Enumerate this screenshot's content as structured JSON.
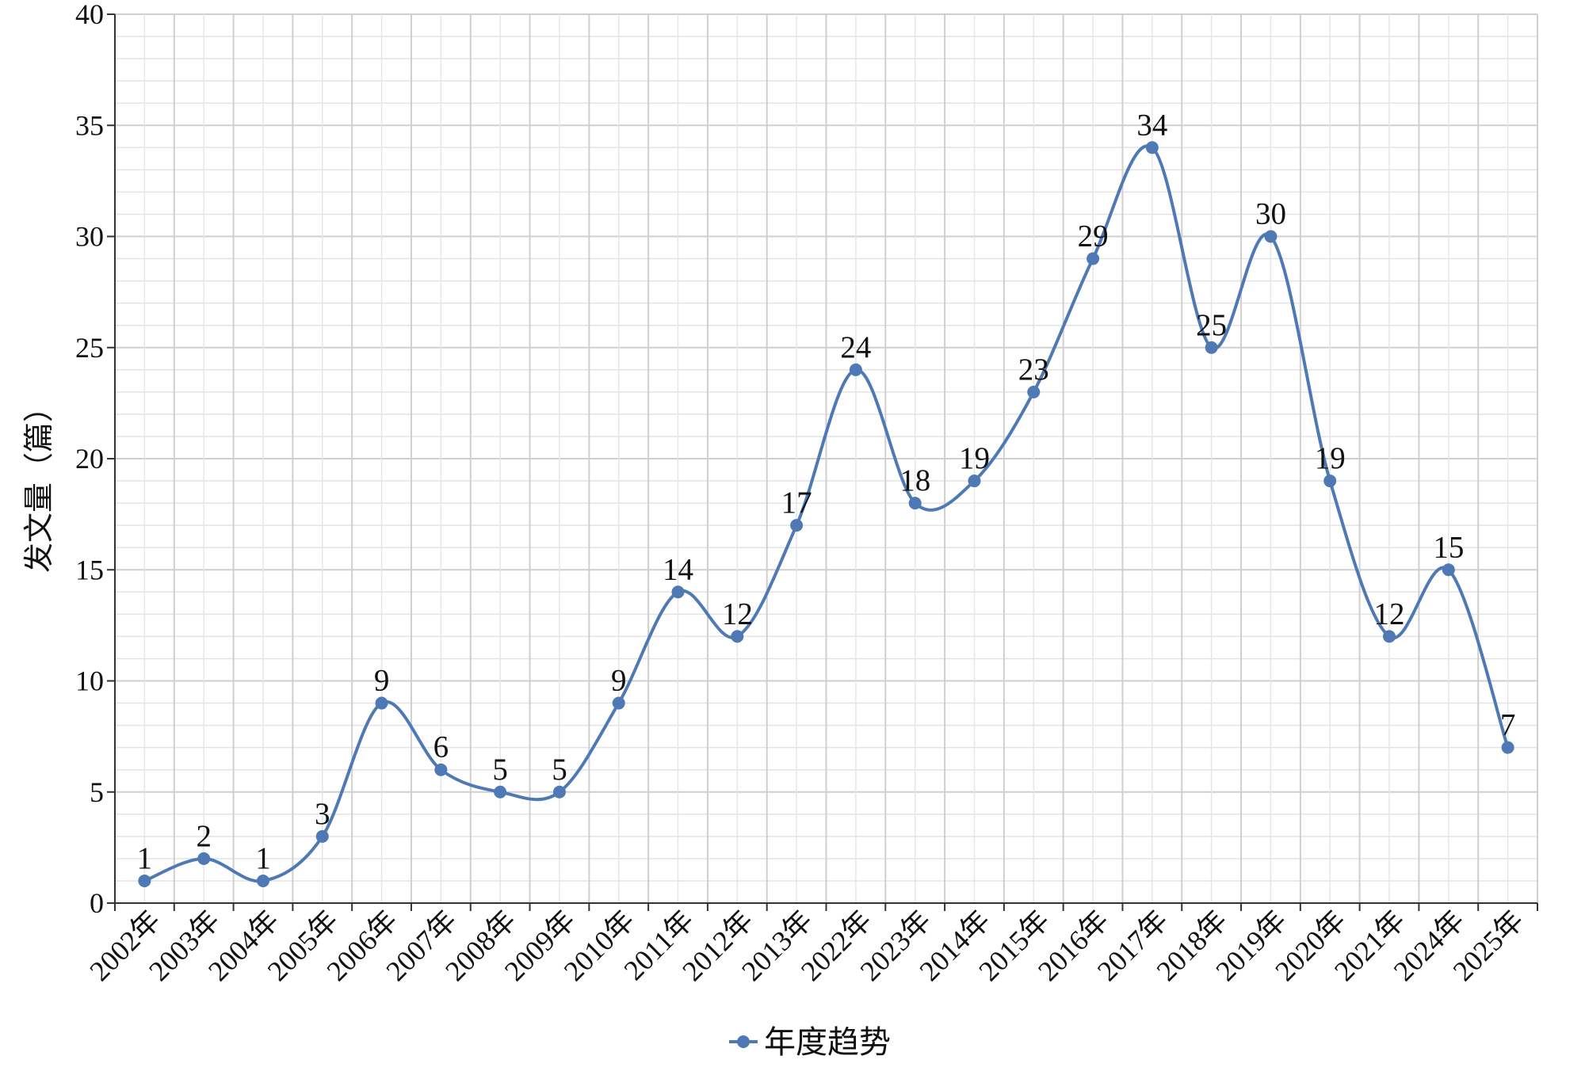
{
  "chart_data": {
    "type": "line",
    "smooth": true,
    "ylabel": "发文量（篇）",
    "xlabel": "",
    "ylim": [
      0,
      40
    ],
    "y_ticks": [
      0,
      5,
      10,
      15,
      20,
      25,
      30,
      35,
      40
    ],
    "grid": "on",
    "legend_position": "bottom-center",
    "color": "#4e79b4",
    "categories": [
      "2002年",
      "2003年",
      "2004年",
      "2005年",
      "2006年",
      "2007年",
      "2008年",
      "2009年",
      "2010年",
      "2011年",
      "2012年",
      "2013年",
      "2022年",
      "2023年",
      "2014年",
      "2015年",
      "2016年",
      "2017年",
      "2018年",
      "2019年",
      "2020年",
      "2021年",
      "2024年",
      "2025年"
    ],
    "series": [
      {
        "name": "年度趋势",
        "values": [
          1,
          2,
          1,
          3,
          9,
          6,
          5,
          5,
          9,
          14,
          12,
          17,
          24,
          18,
          19,
          23,
          29,
          34,
          25,
          30,
          19,
          12,
          15,
          7
        ]
      }
    ]
  }
}
